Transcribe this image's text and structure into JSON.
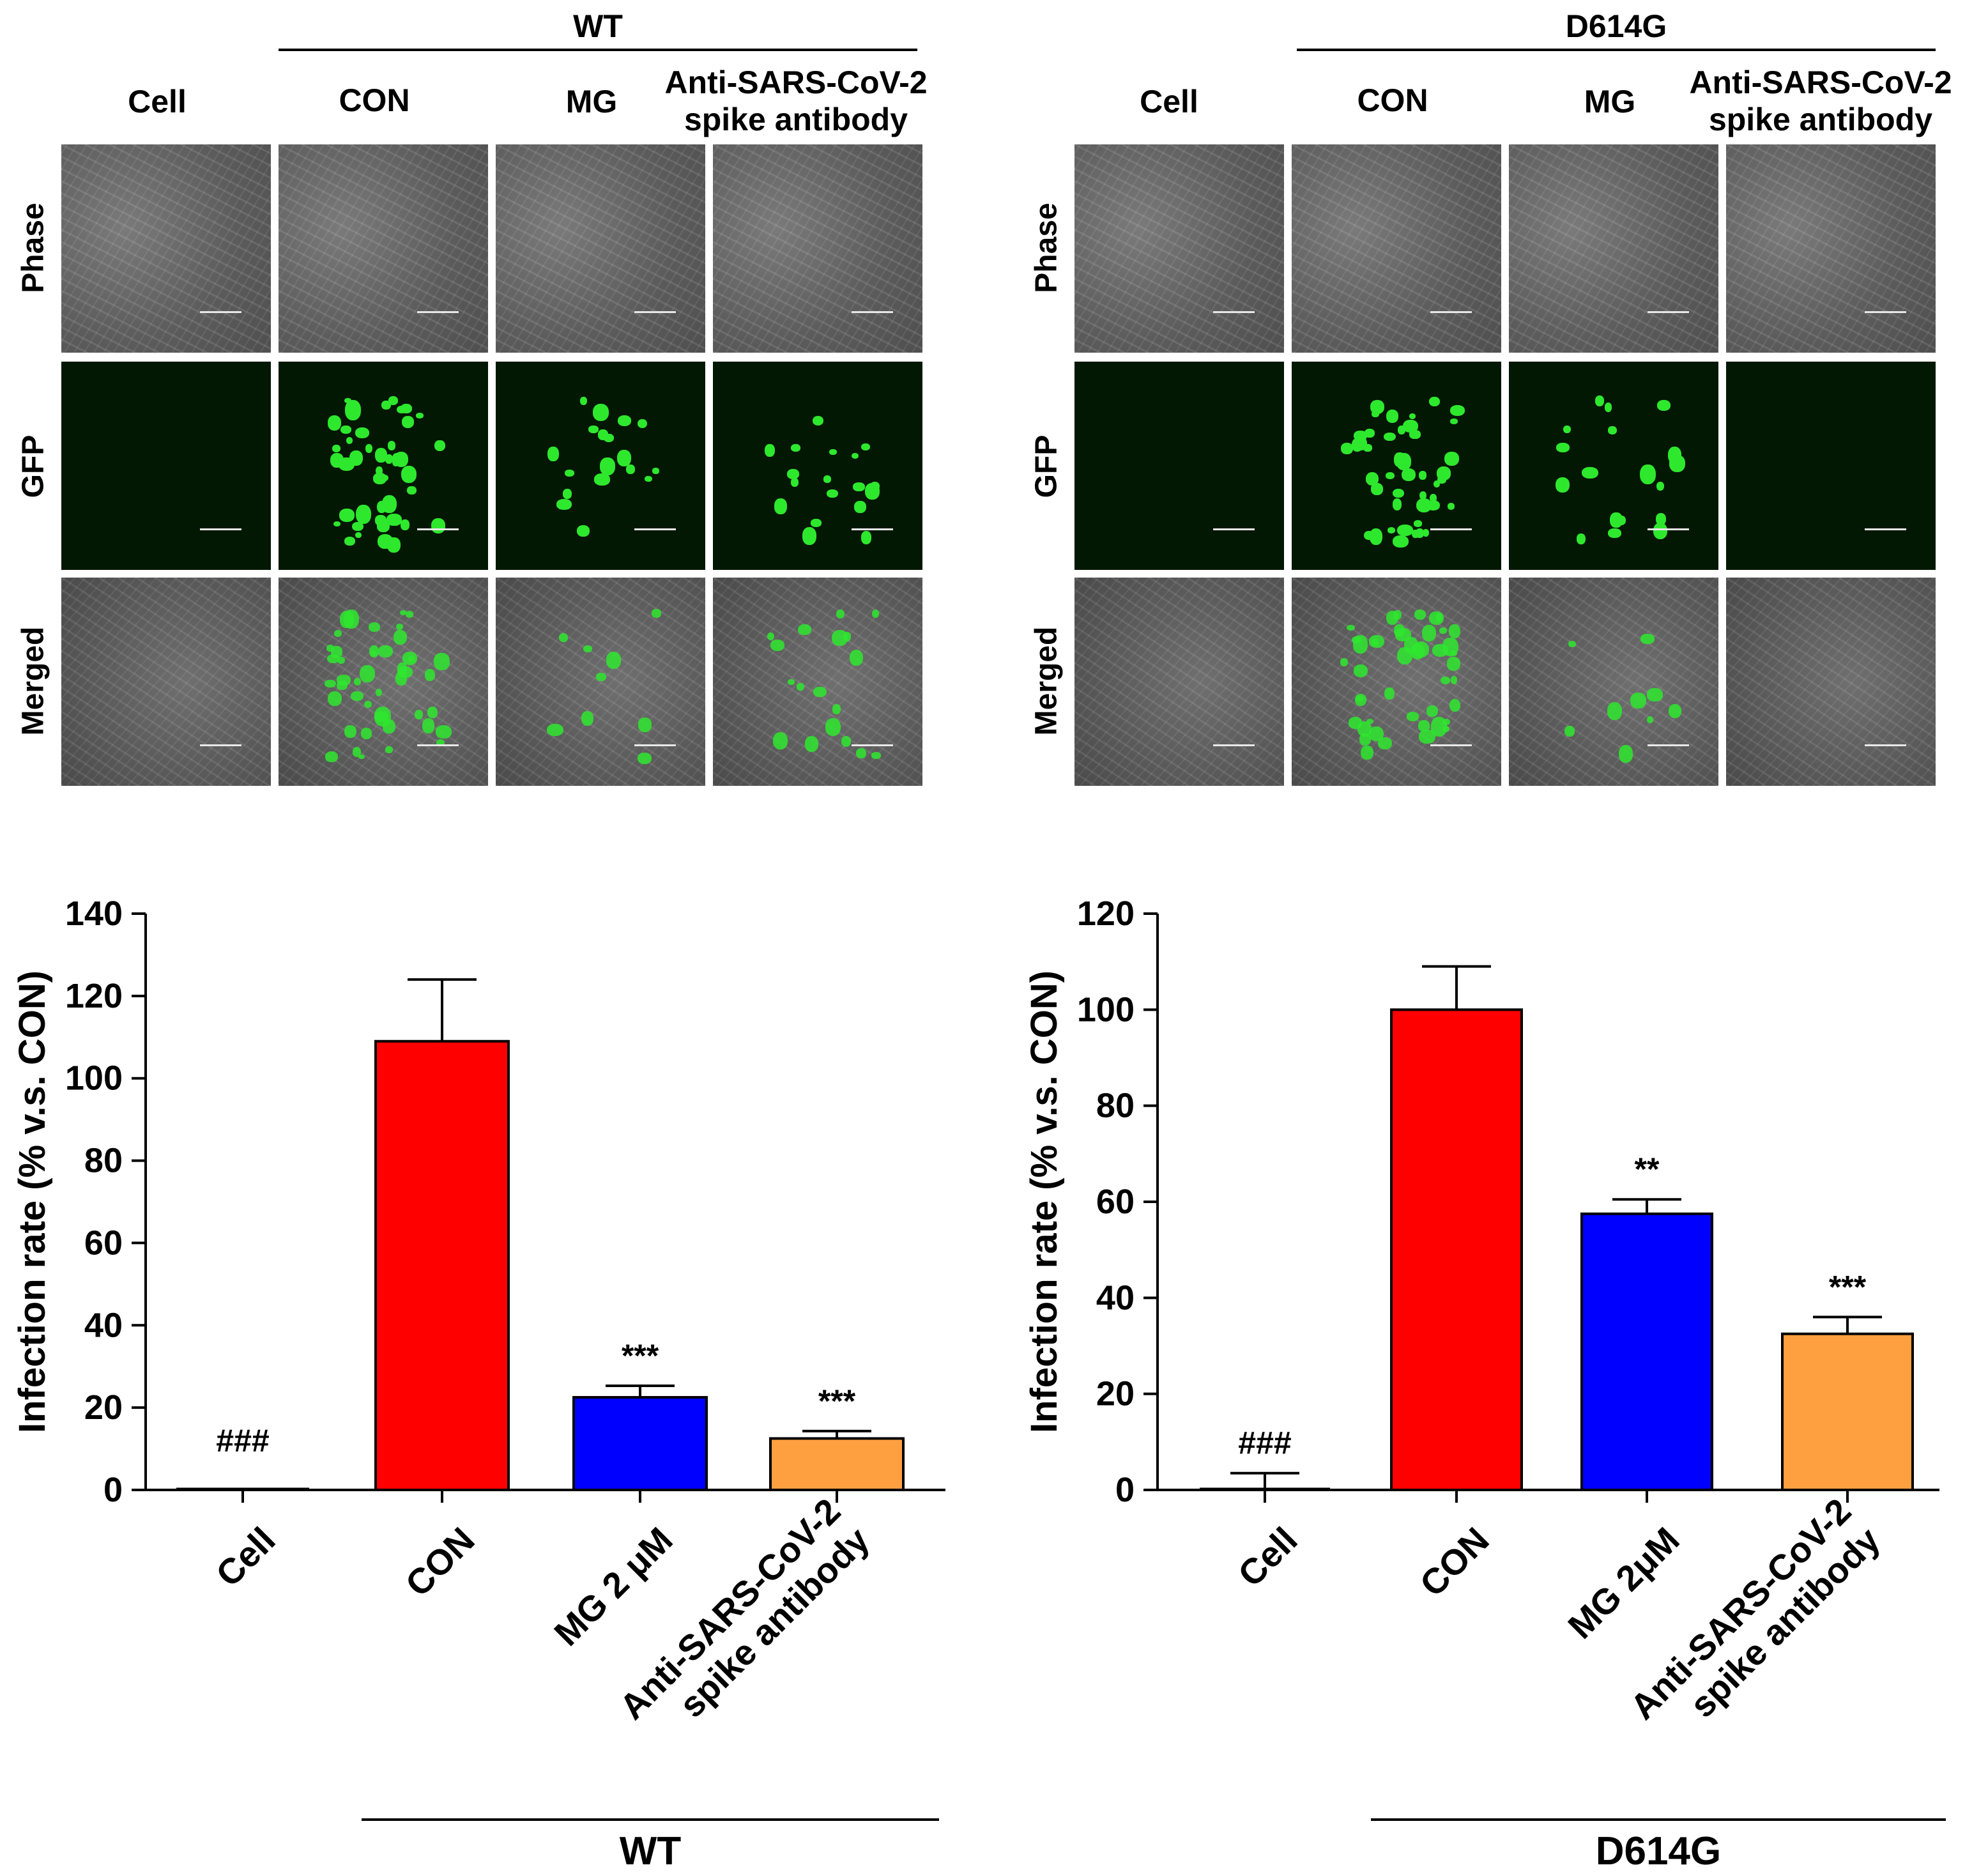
{
  "micrographs": [
    {
      "group": "WT",
      "columns": [
        "Cell",
        "CON",
        "MG",
        "Anti-SARS-CoV-2\nspike antibody"
      ],
      "rows": [
        "Phase",
        "GFP",
        "Merged"
      ],
      "green_intensity": [
        0,
        5,
        2,
        2
      ],
      "merged_intensity": [
        0,
        5,
        1,
        2
      ]
    },
    {
      "group": "D614G",
      "columns": [
        "Cell",
        "CON",
        "MG",
        "Anti-SARS-CoV-2\nspike antibody"
      ],
      "rows": [
        "Phase",
        "GFP",
        "Merged"
      ],
      "green_intensity": [
        0,
        5,
        2,
        0
      ],
      "merged_intensity": [
        0,
        5,
        1,
        0
      ]
    }
  ],
  "chart_data": [
    {
      "type": "bar",
      "title": "",
      "ylabel": "Infection rate (% v.s. CON)",
      "xlabel": "",
      "ylim": [
        0,
        140
      ],
      "yticks": [
        0,
        20,
        40,
        60,
        80,
        100,
        120,
        140
      ],
      "categories": [
        "Cell",
        "CON",
        "MG 2 μM",
        "Anti-SARS-CoV-2\nspike antibody"
      ],
      "values": [
        0,
        109,
        22.5,
        12.5
      ],
      "errors": [
        0,
        15,
        2.8,
        1.8
      ],
      "annotations": [
        "###",
        "",
        "***",
        "***"
      ],
      "colors": [
        "#ffffff",
        "#ff0000",
        "#0000ff",
        "#ffa040"
      ],
      "group_label": "WT"
    },
    {
      "type": "bar",
      "title": "",
      "ylabel": "Infection rate (% v.s. CON)",
      "xlabel": "",
      "ylim": [
        0,
        120
      ],
      "yticks": [
        0,
        20,
        40,
        60,
        80,
        100,
        120
      ],
      "categories": [
        "Cell",
        "CON",
        "MG 2μM",
        "Anti-SARS-CoV-2\nspike antibody"
      ],
      "values": [
        0,
        100,
        57.5,
        32.5
      ],
      "errors": [
        3.5,
        9,
        3,
        3.5
      ],
      "annotations": [
        "###",
        "",
        "**",
        "***"
      ],
      "colors": [
        "#ffffff",
        "#ff0000",
        "#0000ff",
        "#ffa040"
      ],
      "group_label": "D614G"
    }
  ]
}
